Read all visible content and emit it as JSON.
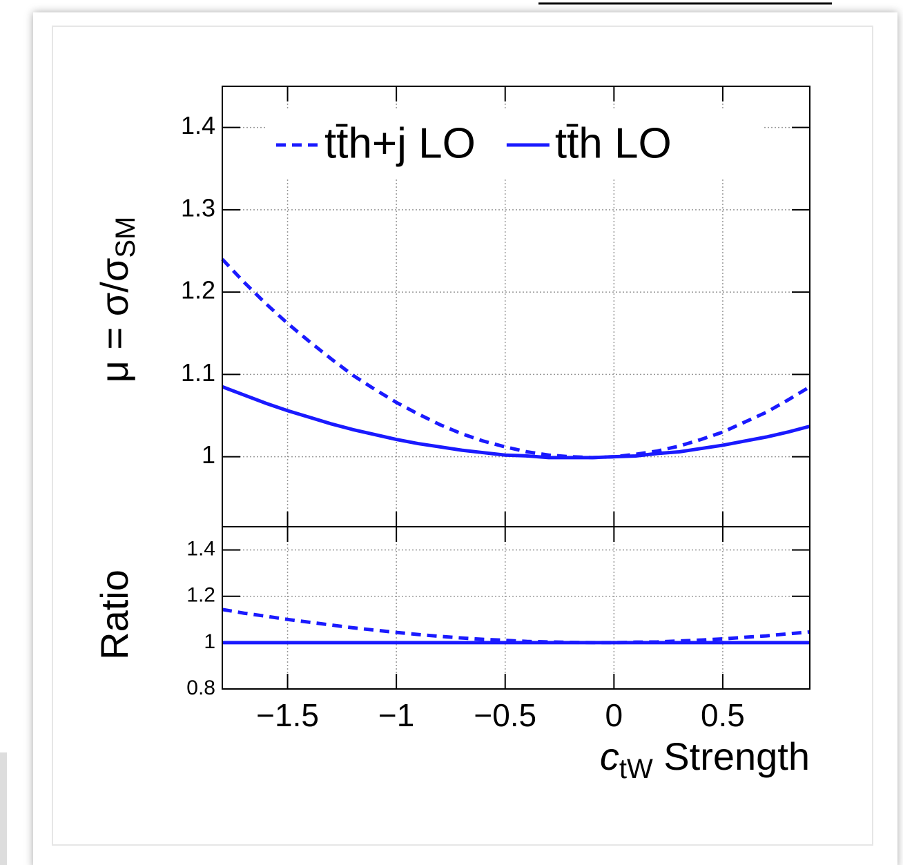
{
  "chart_data": [
    {
      "type": "line",
      "y_label": [
        "μ = σ/σ",
        "SM"
      ],
      "x": [
        -1.8,
        -1.7,
        -1.6,
        -1.5,
        -1.4,
        -1.3,
        -1.2,
        -1.1,
        -1.0,
        -0.9,
        -0.8,
        -0.7,
        -0.6,
        -0.5,
        -0.4,
        -0.3,
        -0.2,
        -0.1,
        0,
        0.1,
        0.2,
        0.3,
        0.4,
        0.5,
        0.6,
        0.7,
        0.8,
        0.9
      ],
      "series": [
        {
          "name": "tt̄h+j LO",
          "color": "#1a1aff",
          "line_style": "dashed",
          "values": [
            1.24,
            1.212,
            1.186,
            1.162,
            1.14,
            1.119,
            1.099,
            1.082,
            1.066,
            1.052,
            1.039,
            1.028,
            1.019,
            1.012,
            1.006,
            1.002,
            1.0,
            0.999,
            1.0,
            1.003,
            1.007,
            1.013,
            1.021,
            1.03,
            1.042,
            1.054,
            1.069,
            1.085
          ]
        },
        {
          "name": "tt̄h LO",
          "color": "#1a1aff",
          "line_style": "solid",
          "values": [
            1.085,
            1.075,
            1.065,
            1.056,
            1.048,
            1.04,
            1.033,
            1.027,
            1.021,
            1.016,
            1.012,
            1.008,
            1.005,
            1.002,
            1.001,
            0.999,
            0.999,
            0.999,
            1.0,
            1.001,
            1.004,
            1.006,
            1.01,
            1.014,
            1.019,
            1.024,
            1.03,
            1.037
          ]
        }
      ],
      "xlim": [
        -1.8,
        0.9
      ],
      "xticks": [
        -1.5,
        -1,
        -0.5,
        0,
        0.5
      ],
      "ylim": [
        0.915,
        1.45
      ],
      "yticks": [
        1,
        1.1,
        1.2,
        1.3,
        1.4
      ],
      "grid": true,
      "legend": "top"
    },
    {
      "type": "line",
      "y_label": [
        "Ratio"
      ],
      "x_label": [
        "c",
        "tW",
        " Strength"
      ],
      "x": [
        -1.8,
        -1.7,
        -1.6,
        -1.5,
        -1.4,
        -1.3,
        -1.2,
        -1.1,
        -1.0,
        -0.9,
        -0.8,
        -0.7,
        -0.6,
        -0.5,
        -0.4,
        -0.3,
        -0.2,
        -0.1,
        0,
        0.1,
        0.2,
        0.3,
        0.4,
        0.5,
        0.6,
        0.7,
        0.8,
        0.9
      ],
      "series": [
        {
          "color": "#1a1aff",
          "line_style": "dashed",
          "values": [
            1.143,
            1.127,
            1.114,
            1.1,
            1.088,
            1.076,
            1.064,
            1.054,
            1.044,
            1.035,
            1.027,
            1.02,
            1.014,
            1.01,
            1.005,
            1.003,
            1.001,
            1.0,
            1.0,
            1.002,
            1.003,
            1.007,
            1.011,
            1.016,
            1.023,
            1.029,
            1.038,
            1.046
          ]
        },
        {
          "color": "#1a1aff",
          "line_style": "solid",
          "values": [
            1,
            1,
            1,
            1,
            1,
            1,
            1,
            1,
            1,
            1,
            1,
            1,
            1,
            1,
            1,
            1,
            1,
            1,
            1,
            1,
            1,
            1,
            1,
            1,
            1,
            1,
            1,
            1
          ]
        }
      ],
      "xlim": [
        -1.8,
        0.9
      ],
      "xticks": [
        {
          "value": -1.5,
          "label": "−1.5"
        },
        {
          "value": -1,
          "label": "−1"
        },
        {
          "value": -0.5,
          "label": "−0.5"
        },
        0,
        0.5
      ],
      "ylim": [
        0.8,
        1.5
      ],
      "yticks": [
        0.8,
        1,
        1.2,
        1.4
      ],
      "grid": true
    }
  ]
}
